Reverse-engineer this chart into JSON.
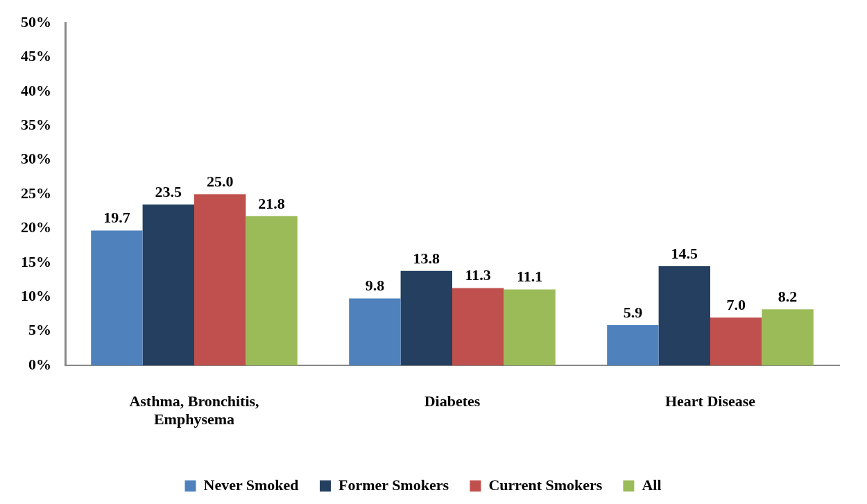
{
  "chart_data": {
    "type": "bar",
    "categories": [
      "Asthma, Bronchitis, Emphysema",
      "Diabetes",
      "Heart Disease"
    ],
    "series": [
      {
        "name": "Never Smoked",
        "color": "#4f81bd",
        "values": [
          19.7,
          9.8,
          5.9
        ],
        "value_labels": [
          "19.7",
          "9.8",
          "5.9"
        ]
      },
      {
        "name": "Former Smokers",
        "color": "#243f60",
        "values": [
          23.5,
          13.8,
          14.5
        ],
        "value_labels": [
          "23.5",
          "13.8",
          "14.5"
        ]
      },
      {
        "name": "Current Smokers",
        "color": "#c0504d",
        "values": [
          25,
          11.3,
          7
        ],
        "value_labels": [
          "25.0",
          "11.3",
          "7.0"
        ]
      },
      {
        "name": "All",
        "color": "#9bbb59",
        "values": [
          21.8,
          11.1,
          8.2
        ],
        "value_labels": [
          "21.8",
          "11.1",
          "8.2"
        ]
      }
    ],
    "ylim": [
      0,
      50
    ],
    "yticks": [
      {
        "value": 0,
        "label": "0%"
      },
      {
        "value": 5,
        "label": "5%"
      },
      {
        "value": 10,
        "label": "10%"
      },
      {
        "value": 15,
        "label": "15%"
      },
      {
        "value": 20,
        "label": "20%"
      },
      {
        "value": 25,
        "label": "25%"
      },
      {
        "value": 30,
        "label": "30%"
      },
      {
        "value": 35,
        "label": "35%"
      },
      {
        "value": 40,
        "label": "40%"
      },
      {
        "value": 45,
        "label": "45%"
      },
      {
        "value": 50,
        "label": "50%"
      }
    ],
    "grid": false,
    "legend": "bottom"
  }
}
